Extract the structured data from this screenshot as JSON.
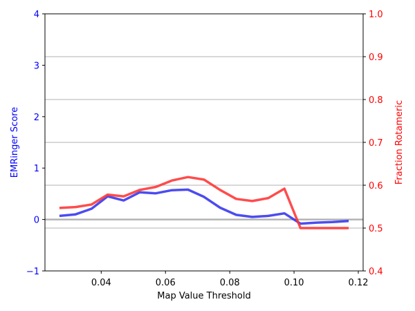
{
  "chart_data": {
    "type": "line",
    "xlabel": "Map Value Threshold",
    "ylabel_left": "EMRinger Score",
    "ylabel_right": "Fraction Rotameric",
    "xlim": [
      0.0225,
      0.1215
    ],
    "ylim_left": [
      -1,
      4
    ],
    "ylim_right": [
      0.4,
      1.0
    ],
    "x_ticks": [
      0.04,
      0.06,
      0.08,
      0.1,
      0.12
    ],
    "x_tick_labels": [
      "0.04",
      "0.06",
      "0.08",
      "0.10",
      "0.12"
    ],
    "y_left_ticks": [
      -1,
      0,
      1,
      2,
      3,
      4
    ],
    "y_left_tick_labels": [
      "−1",
      "0",
      "1",
      "2",
      "3",
      "4"
    ],
    "y_right_ticks": [
      0.4,
      0.5,
      0.6,
      0.7,
      0.8,
      0.9,
      1.0
    ],
    "y_right_tick_labels": [
      "0.4",
      "0.5",
      "0.6",
      "0.7",
      "0.8",
      "0.9",
      "1.0"
    ],
    "grid": "horizontal, right axis",
    "reference_line_left": 0,
    "x": [
      0.027,
      0.032,
      0.037,
      0.042,
      0.047,
      0.052,
      0.057,
      0.062,
      0.067,
      0.072,
      0.077,
      0.082,
      0.087,
      0.092,
      0.097,
      0.102,
      0.107,
      0.112,
      0.117
    ],
    "series": [
      {
        "axis": "left",
        "color": "#3333ee",
        "values": [
          0.07,
          0.1,
          0.21,
          0.45,
          0.37,
          0.53,
          0.51,
          0.57,
          0.58,
          0.44,
          0.23,
          0.09,
          0.05,
          0.07,
          0.12,
          -0.08,
          -0.06,
          -0.05,
          -0.03
        ]
      },
      {
        "axis": "right",
        "color": "#ff3333",
        "values": [
          0.547,
          0.549,
          0.555,
          0.578,
          0.574,
          0.589,
          0.596,
          0.611,
          0.619,
          0.613,
          0.589,
          0.568,
          0.563,
          0.57,
          0.592,
          0.5,
          0.5,
          0.5,
          0.5
        ]
      }
    ]
  }
}
